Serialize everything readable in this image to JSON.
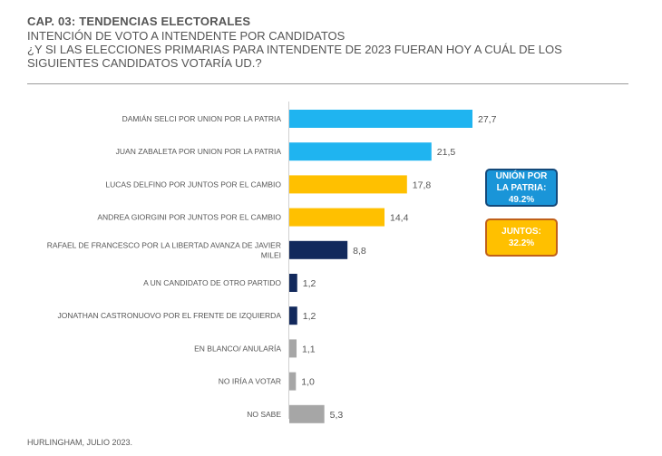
{
  "header": {
    "title": "CAP. 03: TENDENCIAS ELECTORALES",
    "subtitle": "INTENCIÓN DE VOTO A INTENDENTE POR CANDIDATOS",
    "question_line1": "¿Y SI LAS ELECCIONES PRIMARIAS PARA INTENDENTE DE 2023 FUERAN HOY A CUÁL DE LOS",
    "question_line2": "SIGUIENTES CANDIDATOS VOTARÍA UD.?"
  },
  "chart_data": {
    "type": "bar",
    "orientation": "horizontal",
    "categories": [
      "DAMIÁN SELCI POR UNION POR LA PATRIA",
      "JUAN ZABALETA POR UNION POR LA PATRIA",
      "LUCAS DELFINO POR JUNTOS POR EL CAMBIO",
      "ANDREA GIORGINI POR JUNTOS POR EL CAMBIO",
      "RAFAEL DE FRANCESCO POR LA LIBERTAD AVANZA DE JAVIER MILEI",
      "A UN CANDIDATO DE OTRO PARTIDO",
      "JONATHAN CASTRONUOVO POR EL FRENTE DE IZQUIERDA",
      "EN BLANCO/ ANULARÍA",
      "NO IRÍA A VOTAR",
      "NO SABE"
    ],
    "values": [
      27.7,
      21.5,
      17.8,
      14.4,
      8.8,
      1.2,
      1.2,
      1.1,
      1.0,
      5.3
    ],
    "value_labels": [
      "27,7",
      "21,5",
      "17,8",
      "14,4",
      "8,8",
      "1,2",
      "1,2",
      "1,1",
      "1,0",
      "5,3"
    ],
    "colors": [
      "#1fb4f0",
      "#1fb4f0",
      "#ffc000",
      "#ffc000",
      "#12295c",
      "#12295c",
      "#12295c",
      "#a6a6a6",
      "#a6a6a6",
      "#a6a6a6"
    ],
    "xlim": [
      0,
      27.7
    ],
    "grid": false,
    "legend": "none"
  },
  "callouts": {
    "union": {
      "line1": "UNIÓN POR",
      "line2": "LA PATRIA:",
      "line3": "49.2%"
    },
    "juntos": {
      "line1": "JUNTOS:",
      "line2": "32.2%"
    }
  },
  "footer": {
    "text": "HURLINGHAM, JULIO 2023."
  }
}
